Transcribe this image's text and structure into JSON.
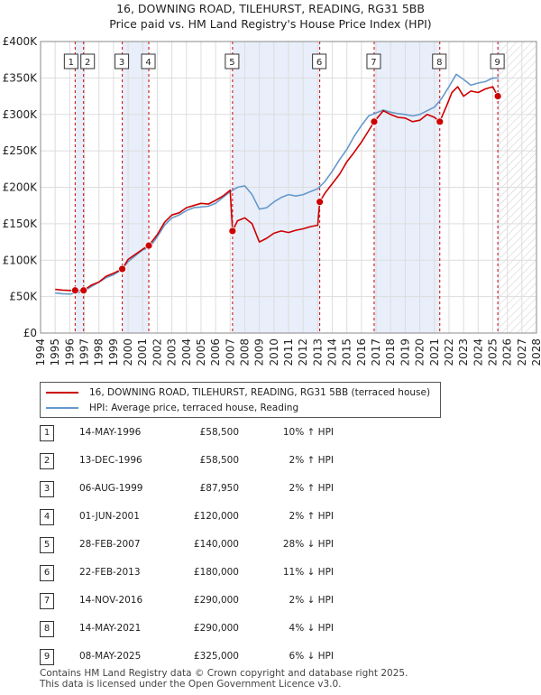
{
  "header": {
    "title": "16, DOWNING ROAD, TILEHURST, READING, RG31 5BB",
    "subtitle": "Price paid vs. HM Land Registry's House Price Index (HPI)"
  },
  "colors": {
    "property_line": "#cc0000",
    "hpi_line": "#6699cc",
    "shade": "#e8eefa",
    "marker_line": "#cc0000",
    "grid": "#dddddd"
  },
  "legend": {
    "property": "16, DOWNING ROAD, TILEHURST, READING, RG31 5BB (terraced house)",
    "hpi": "HPI: Average price, terraced house, Reading"
  },
  "chart_data": {
    "type": "line",
    "title": "16, DOWNING ROAD, TILEHURST, READING, RG31 5BB",
    "subtitle": "Price paid vs. HM Land Registry's House Price Index (HPI)",
    "xlabel": "",
    "ylabel": "",
    "xlim": [
      1994,
      2028
    ],
    "ylim": [
      0,
      400000
    ],
    "x_ticks": [
      1994,
      1995,
      1996,
      1997,
      1998,
      1999,
      2000,
      2001,
      2002,
      2003,
      2004,
      2005,
      2006,
      2007,
      2008,
      2009,
      2010,
      2011,
      2012,
      2013,
      2014,
      2015,
      2016,
      2017,
      2018,
      2019,
      2020,
      2021,
      2022,
      2023,
      2024,
      2025,
      2026,
      2027,
      2028
    ],
    "y_ticks": [
      {
        "value": 0,
        "label": "£0"
      },
      {
        "value": 50000,
        "label": "£50K"
      },
      {
        "value": 100000,
        "label": "£100K"
      },
      {
        "value": 150000,
        "label": "£150K"
      },
      {
        "value": 200000,
        "label": "£200K"
      },
      {
        "value": 250000,
        "label": "£250K"
      },
      {
        "value": 300000,
        "label": "£300K"
      },
      {
        "value": 350000,
        "label": "£350K"
      },
      {
        "value": 400000,
        "label": "£400K"
      }
    ],
    "grid": true,
    "hatched_future_from": 2025.5,
    "shaded_spans": [
      [
        1996.37,
        1996.95
      ],
      [
        1999.6,
        2001.42
      ],
      [
        2007.16,
        2013.14
      ],
      [
        2016.87,
        2021.37
      ],
      [
        2025.35,
        2025.5
      ]
    ],
    "sales": [
      {
        "id": "1",
        "date": "14-MAY-1996",
        "year": 1996.37,
        "price": 58500,
        "price_label": "£58,500",
        "hpi_label": "10% ↑ HPI"
      },
      {
        "id": "2",
        "date": "13-DEC-1996",
        "year": 1996.95,
        "price": 58500,
        "price_label": "£58,500",
        "hpi_label": "2% ↑ HPI"
      },
      {
        "id": "3",
        "date": "06-AUG-1999",
        "year": 1999.6,
        "price": 87950,
        "price_label": "£87,950",
        "hpi_label": "2% ↑ HPI"
      },
      {
        "id": "4",
        "date": "01-JUN-2001",
        "year": 2001.42,
        "price": 120000,
        "price_label": "£120,000",
        "hpi_label": "2% ↑ HPI"
      },
      {
        "id": "5",
        "date": "28-FEB-2007",
        "year": 2007.16,
        "price": 140000,
        "price_label": "£140,000",
        "hpi_label": "28% ↓ HPI"
      },
      {
        "id": "6",
        "date": "22-FEB-2013",
        "year": 2013.14,
        "price": 180000,
        "price_label": "£180,000",
        "hpi_label": "11% ↓ HPI"
      },
      {
        "id": "7",
        "date": "14-NOV-2016",
        "year": 2016.87,
        "price": 290000,
        "price_label": "£290,000",
        "hpi_label": "2% ↓ HPI"
      },
      {
        "id": "8",
        "date": "14-MAY-2021",
        "year": 2021.37,
        "price": 290000,
        "price_label": "£290,000",
        "hpi_label": "4% ↓ HPI"
      },
      {
        "id": "9",
        "date": "08-MAY-2025",
        "year": 2025.35,
        "price": 325000,
        "price_label": "£325,000",
        "hpi_label": "6% ↓ HPI"
      }
    ],
    "series": [
      {
        "name": "16, DOWNING ROAD, TILEHURST, READING, RG31 5BB (terraced house)",
        "color": "#cc0000",
        "x": [
          1995.0,
          1995.5,
          1996.0,
          1996.37,
          1996.95,
          1997.5,
          1998.0,
          1998.5,
          1999.0,
          1999.6,
          2000.0,
          2000.5,
          2001.0,
          2001.42,
          2002.0,
          2002.5,
          2003.0,
          2003.5,
          2004.0,
          2004.5,
          2005.0,
          2005.5,
          2006.0,
          2006.5,
          2007.0,
          2007.16,
          2007.5,
          2008.0,
          2008.5,
          2009.0,
          2009.5,
          2010.0,
          2010.5,
          2011.0,
          2011.5,
          2012.0,
          2012.5,
          2013.0,
          2013.14,
          2013.5,
          2014.0,
          2014.5,
          2015.0,
          2015.5,
          2016.0,
          2016.5,
          2016.87,
          2017.5,
          2018.0,
          2018.5,
          2019.0,
          2019.5,
          2020.0,
          2020.5,
          2021.0,
          2021.37,
          2021.8,
          2022.2,
          2022.6,
          2023.0,
          2023.5,
          2024.0,
          2024.5,
          2025.0,
          2025.35
        ],
        "y": [
          60000,
          59000,
          58500,
          58500,
          58500,
          66000,
          70000,
          78000,
          82000,
          87950,
          101000,
          108000,
          115000,
          120000,
          135000,
          152000,
          162000,
          165000,
          172000,
          175000,
          178000,
          177000,
          182000,
          188000,
          196000,
          140000,
          154000,
          158000,
          150000,
          125000,
          130000,
          137000,
          140000,
          138000,
          141000,
          143000,
          146000,
          148000,
          180000,
          192000,
          205000,
          218000,
          235000,
          248000,
          262000,
          278000,
          290000,
          305000,
          300000,
          296000,
          295000,
          290000,
          292000,
          300000,
          296000,
          290000,
          310000,
          330000,
          338000,
          325000,
          332000,
          330000,
          335000,
          338000,
          325000
        ]
      },
      {
        "name": "HPI: Average price, terraced house, Reading",
        "color": "#6699cc",
        "x": [
          1995.0,
          1995.5,
          1996.0,
          1996.5,
          1997.0,
          1997.5,
          1998.0,
          1998.5,
          1999.0,
          1999.5,
          2000.0,
          2000.5,
          2001.0,
          2001.5,
          2002.0,
          2002.5,
          2003.0,
          2003.5,
          2004.0,
          2004.5,
          2005.0,
          2005.5,
          2006.0,
          2006.5,
          2007.0,
          2007.5,
          2008.0,
          2008.5,
          2009.0,
          2009.5,
          2010.0,
          2010.5,
          2011.0,
          2011.5,
          2012.0,
          2012.5,
          2013.0,
          2013.5,
          2014.0,
          2014.5,
          2015.0,
          2015.5,
          2016.0,
          2016.5,
          2017.0,
          2017.5,
          2018.0,
          2018.5,
          2019.0,
          2019.5,
          2020.0,
          2020.5,
          2021.0,
          2021.5,
          2022.0,
          2022.5,
          2023.0,
          2023.5,
          2024.0,
          2024.5,
          2025.0,
          2025.4
        ],
        "y": [
          55000,
          54000,
          53500,
          55000,
          58000,
          64000,
          70000,
          76000,
          80000,
          86000,
          98000,
          106000,
          114000,
          118000,
          132000,
          148000,
          158000,
          162000,
          168000,
          172000,
          173000,
          174000,
          178000,
          186000,
          194000,
          200000,
          202000,
          190000,
          170000,
          172000,
          180000,
          186000,
          190000,
          188000,
          190000,
          194000,
          198000,
          208000,
          222000,
          238000,
          252000,
          270000,
          285000,
          298000,
          302000,
          306000,
          303000,
          301000,
          300000,
          298000,
          300000,
          305000,
          310000,
          322000,
          338000,
          355000,
          348000,
          340000,
          343000,
          345000,
          350000,
          350000
        ]
      }
    ]
  },
  "footer": {
    "line1": "Contains HM Land Registry data © Crown copyright and database right 2025.",
    "line2": "This data is licensed under the Open Government Licence v3.0."
  }
}
